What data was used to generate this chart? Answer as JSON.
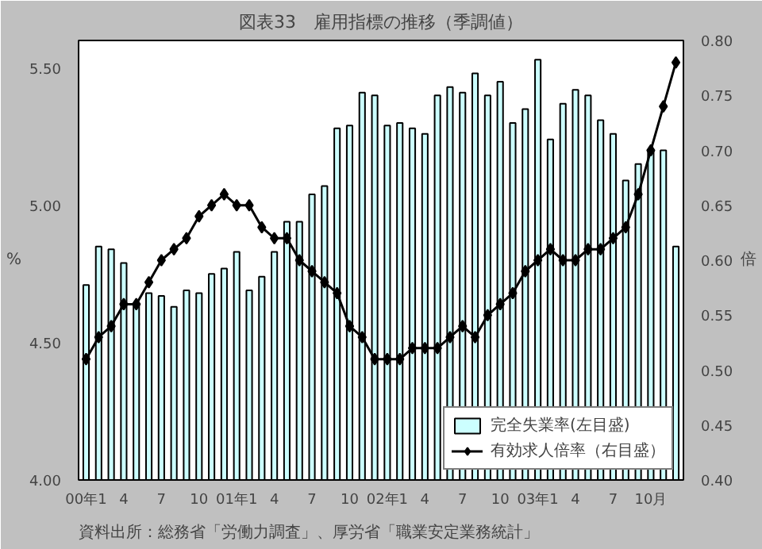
{
  "chart_data": {
    "type": "bar",
    "title": "図表33　雇用指標の推移（季調値）",
    "ylabel": "%",
    "y2label": "倍",
    "categories": [
      "00年1",
      null,
      null,
      "4",
      null,
      null,
      "7",
      null,
      null,
      "10",
      null,
      null,
      "01年1",
      null,
      null,
      "4",
      null,
      null,
      "7",
      null,
      null,
      "10",
      null,
      null,
      "02年1",
      null,
      null,
      "4",
      null,
      null,
      "7",
      null,
      null,
      "10",
      null,
      null,
      "03年1",
      null,
      null,
      "4",
      null,
      null,
      "7",
      null,
      null,
      "10月",
      null,
      null
    ],
    "series": [
      {
        "name": "完全失業率(左目盛)",
        "color": "#ccffff",
        "values": [
          4.71,
          4.85,
          4.84,
          4.79,
          4.64,
          4.68,
          4.67,
          4.63,
          4.69,
          4.68,
          4.75,
          4.77,
          4.83,
          4.69,
          4.74,
          4.83,
          4.94,
          4.94,
          5.04,
          5.07,
          5.28,
          5.29,
          5.41,
          5.4,
          5.29,
          5.3,
          5.28,
          5.26,
          5.4,
          5.43,
          5.41,
          5.48,
          5.4,
          5.45,
          5.3,
          5.35,
          5.53,
          5.24,
          5.37,
          5.42,
          5.4,
          5.31,
          5.26,
          5.09,
          5.15,
          5.2,
          5.2,
          4.85
        ]
      },
      {
        "name": "有効求人倍率（右目盛）",
        "type": "line",
        "axis": "y2",
        "color": "#000000",
        "marker": "diamond",
        "values": [
          0.51,
          0.53,
          0.54,
          0.56,
          0.56,
          0.58,
          0.6,
          0.61,
          0.62,
          0.64,
          0.65,
          0.66,
          0.65,
          0.65,
          0.63,
          0.62,
          0.62,
          0.6,
          0.59,
          0.58,
          0.57,
          0.54,
          0.53,
          0.51,
          0.51,
          0.51,
          0.52,
          0.52,
          0.52,
          0.53,
          0.54,
          0.53,
          0.55,
          0.56,
          0.57,
          0.59,
          0.6,
          0.61,
          0.6,
          0.6,
          0.61,
          0.61,
          0.62,
          0.63,
          0.66,
          0.7,
          0.74,
          0.78
        ]
      }
    ],
    "ylim": [
      4.0,
      5.6
    ],
    "yticks": [
      {
        "value": 4.0,
        "label": "4.00"
      },
      {
        "value": 4.5,
        "label": "4.50"
      },
      {
        "value": 5.0,
        "label": "5.00"
      },
      {
        "value": 5.5,
        "label": "5.50"
      }
    ],
    "y2lim": [
      0.4,
      0.8
    ],
    "y2ticks": [
      {
        "value": 0.4,
        "label": "0.40"
      },
      {
        "value": 0.45,
        "label": "0.45"
      },
      {
        "value": 0.5,
        "label": "0.50"
      },
      {
        "value": 0.55,
        "label": "0.55"
      },
      {
        "value": 0.6,
        "label": "0.60"
      },
      {
        "value": 0.65,
        "label": "0.65"
      },
      {
        "value": 0.7,
        "label": "0.70"
      },
      {
        "value": 0.75,
        "label": "0.75"
      },
      {
        "value": 0.8,
        "label": "0.80"
      }
    ],
    "grid": false,
    "legend": "bottom right",
    "annotations": [
      "資料出所：総務省「労働力調査」、厚労省「職業安定業務統計」"
    ]
  }
}
